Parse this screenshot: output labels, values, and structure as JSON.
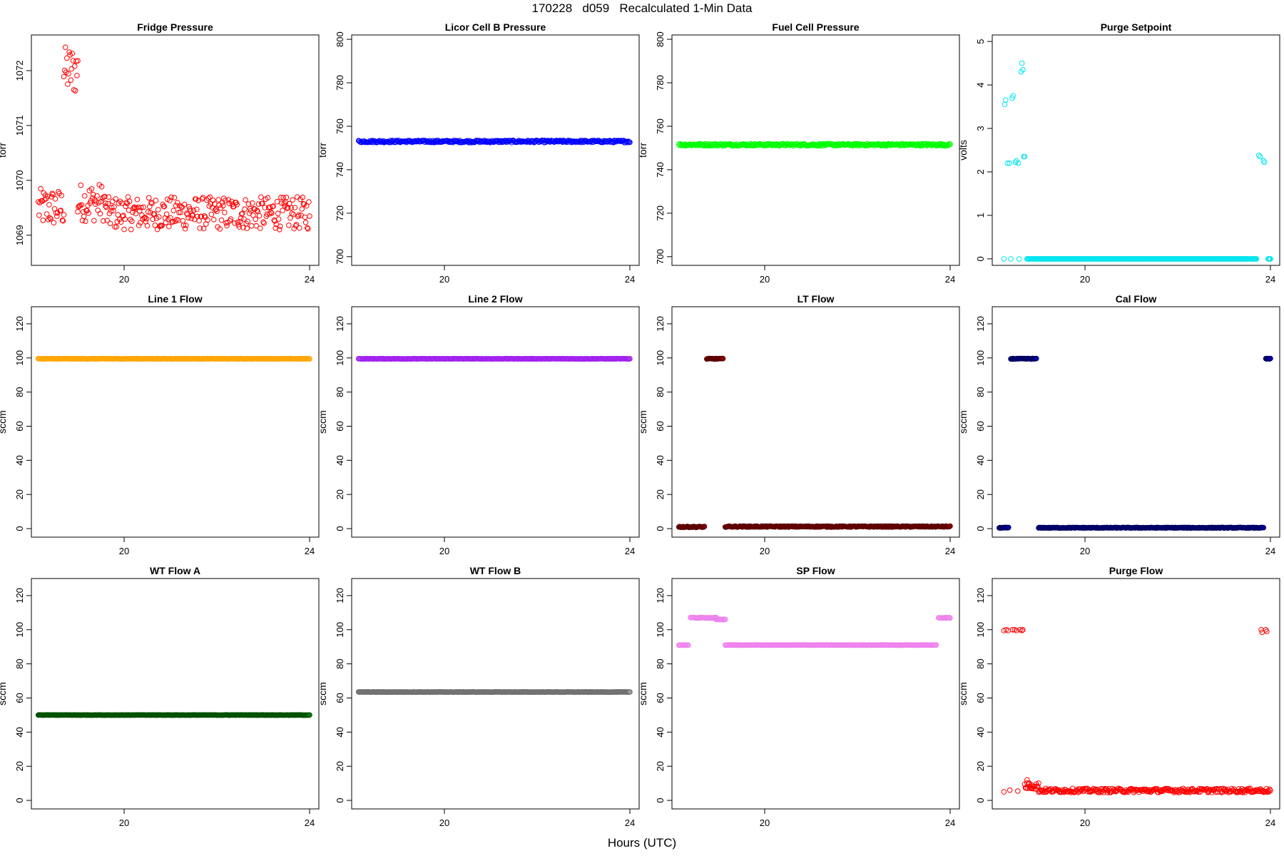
{
  "header": {
    "title": "170228   d059   Recalculated 1-Min Data",
    "xlabel": "Hours (UTC)"
  },
  "chart_data": [
    {
      "type": "scatter",
      "title": "Fridge Pressure",
      "ylabel": "torr",
      "color": "#ff0000",
      "xlim": [
        18.0,
        24.2
      ],
      "ylim": [
        1068.45,
        1072.65
      ],
      "yticks": [
        1069,
        1070,
        1071,
        1072
      ],
      "xticks": [
        20,
        24
      ],
      "segments": [
        {
          "x": [
            18.15,
            18.7
          ],
          "y": 1069.5,
          "noise": 0.35
        },
        {
          "x": [
            18.7,
            19.0
          ],
          "y": 1072.0,
          "noise": 0.45
        },
        {
          "x": [
            19.0,
            19.6
          ],
          "y": 1069.6,
          "noise": 0.35
        },
        {
          "x": [
            19.6,
            24.0
          ],
          "y": 1069.4,
          "noise": 0.3
        }
      ]
    },
    {
      "type": "scatter",
      "title": "Licor Cell B Pressure",
      "ylabel": "torr",
      "color": "#0000ff",
      "xlim": [
        18.0,
        24.2
      ],
      "ylim": [
        696,
        802
      ],
      "yticks": [
        700,
        720,
        740,
        760,
        780,
        800
      ],
      "xticks": [
        20,
        24
      ],
      "segments": [
        {
          "x": [
            18.15,
            24.0
          ],
          "y": 753,
          "noise": 0.5
        }
      ]
    },
    {
      "type": "scatter",
      "title": "Fuel Cell Pressure",
      "ylabel": "torr",
      "color": "#00ff00",
      "xlim": [
        18.0,
        24.2
      ],
      "ylim": [
        696,
        802
      ],
      "yticks": [
        700,
        720,
        740,
        760,
        780,
        800
      ],
      "xticks": [
        20,
        24
      ],
      "segments": [
        {
          "x": [
            18.15,
            24.0
          ],
          "y": 751.5,
          "noise": 0.5
        }
      ]
    },
    {
      "type": "scatter",
      "title": "Purge Setpoint",
      "ylabel": "volts",
      "color": "#00e5ee",
      "xlim": [
        18.0,
        24.2
      ],
      "ylim": [
        -0.15,
        5.15
      ],
      "yticks": [
        0,
        1,
        2,
        3,
        4,
        5
      ],
      "xticks": [
        20,
        24
      ],
      "points": [
        [
          18.27,
          3.55
        ],
        [
          18.29,
          3.65
        ],
        [
          18.33,
          2.2
        ],
        [
          18.37,
          2.2
        ],
        [
          18.43,
          3.7
        ],
        [
          18.45,
          3.75
        ],
        [
          18.5,
          2.22
        ],
        [
          18.52,
          2.25
        ],
        [
          18.56,
          2.2
        ],
        [
          18.62,
          4.3
        ],
        [
          18.64,
          4.5
        ],
        [
          18.66,
          4.35
        ],
        [
          18.68,
          2.35
        ],
        [
          18.7,
          2.35
        ]
      ],
      "segments": [
        {
          "x": [
            18.25,
            18.25
          ],
          "y": 0,
          "noise": 0
        },
        {
          "x": [
            18.4,
            18.4
          ],
          "y": 0,
          "noise": 0
        },
        {
          "x": [
            18.58,
            18.58
          ],
          "y": 0,
          "noise": 0
        },
        {
          "x": [
            18.75,
            23.7
          ],
          "y": 0,
          "noise": 0
        },
        {
          "x": [
            23.95,
            24.0
          ],
          "y": 0,
          "noise": 0
        }
      ],
      "points_extra": [
        [
          23.75,
          2.38
        ],
        [
          23.78,
          2.35
        ],
        [
          23.85,
          2.25
        ],
        [
          23.87,
          2.22
        ]
      ]
    },
    {
      "type": "scatter",
      "title": "Line 1 Flow",
      "ylabel": "sccm",
      "color": "#ffa500",
      "xlim": [
        18.0,
        24.2
      ],
      "ylim": [
        -5,
        130
      ],
      "yticks": [
        0,
        20,
        40,
        60,
        80,
        100,
        120
      ],
      "xticks": [
        20,
        24
      ],
      "segments": [
        {
          "x": [
            18.15,
            24.0
          ],
          "y": 99.5,
          "noise": 0.1
        }
      ]
    },
    {
      "type": "scatter",
      "title": "Line 2 Flow",
      "ylabel": "sccm",
      "color": "#a020f0",
      "xlim": [
        18.0,
        24.2
      ],
      "ylim": [
        -5,
        130
      ],
      "yticks": [
        0,
        20,
        40,
        60,
        80,
        100,
        120
      ],
      "xticks": [
        20,
        24
      ],
      "segments": [
        {
          "x": [
            18.15,
            24.0
          ],
          "y": 99.5,
          "noise": 0.1
        }
      ]
    },
    {
      "type": "scatter",
      "title": "LT Flow",
      "ylabel": "sccm",
      "color": "#8b0000",
      "edge": "#5a0000",
      "xlim": [
        18.0,
        24.2
      ],
      "ylim": [
        -5,
        130
      ],
      "yticks": [
        0,
        20,
        40,
        60,
        80,
        100,
        120
      ],
      "xticks": [
        20,
        24
      ],
      "segments": [
        {
          "x": [
            18.15,
            18.7
          ],
          "y": 1,
          "noise": 0.3
        },
        {
          "x": [
            18.75,
            19.1
          ],
          "y": 99.5,
          "noise": 0.2
        },
        {
          "x": [
            19.15,
            24.0
          ],
          "y": 1.2,
          "noise": 0.3
        }
      ]
    },
    {
      "type": "scatter",
      "title": "Cal Flow",
      "ylabel": "sccm",
      "color": "#0000b0",
      "edge": "#000060",
      "xlim": [
        18.0,
        24.2
      ],
      "ylim": [
        -5,
        130
      ],
      "yticks": [
        0,
        20,
        40,
        60,
        80,
        100,
        120
      ],
      "xticks": [
        20,
        24
      ],
      "segments": [
        {
          "x": [
            18.15,
            18.35
          ],
          "y": 0.5,
          "noise": 0.2
        },
        {
          "x": [
            18.4,
            18.95
          ],
          "y": 99.5,
          "noise": 0.2
        },
        {
          "x": [
            19.0,
            23.85
          ],
          "y": 0.5,
          "noise": 0.2
        },
        {
          "x": [
            23.9,
            24.0
          ],
          "y": 99.5,
          "noise": 0.2
        }
      ]
    },
    {
      "type": "scatter",
      "title": "WT Flow A",
      "ylabel": "sccm",
      "color": "#008000",
      "edge": "#004d00",
      "xlim": [
        18.0,
        24.2
      ],
      "ylim": [
        -5,
        130
      ],
      "yticks": [
        0,
        20,
        40,
        60,
        80,
        100,
        120
      ],
      "xticks": [
        20,
        24
      ],
      "segments": [
        {
          "x": [
            18.15,
            24.0
          ],
          "y": 50,
          "noise": 0.1
        }
      ]
    },
    {
      "type": "scatter",
      "title": "WT Flow B",
      "ylabel": "sccm",
      "color": "#9c9c9c",
      "edge": "#6e6e6e",
      "xlim": [
        18.0,
        24.2
      ],
      "ylim": [
        -5,
        130
      ],
      "yticks": [
        0,
        20,
        40,
        60,
        80,
        100,
        120
      ],
      "xticks": [
        20,
        24
      ],
      "segments": [
        {
          "x": [
            18.15,
            24.0
          ],
          "y": 63.5,
          "noise": 0.1
        }
      ]
    },
    {
      "type": "scatter",
      "title": "SP Flow",
      "ylabel": "sccm",
      "color": "#ee82ee",
      "xlim": [
        18.0,
        24.2
      ],
      "ylim": [
        -5,
        130
      ],
      "yticks": [
        0,
        20,
        40,
        60,
        80,
        100,
        120
      ],
      "xticks": [
        20,
        24
      ],
      "segments": [
        {
          "x": [
            18.15,
            18.35
          ],
          "y": 91,
          "noise": 0.1
        },
        {
          "x": [
            18.4,
            18.95
          ],
          "y": 107,
          "noise": 0.2
        },
        {
          "x": [
            18.95,
            19.15
          ],
          "y": 106,
          "noise": 0.2
        },
        {
          "x": [
            19.15,
            23.7
          ],
          "y": 91,
          "noise": 0.1
        },
        {
          "x": [
            23.75,
            24.0
          ],
          "y": 107,
          "noise": 0.2
        }
      ]
    },
    {
      "type": "scatter",
      "title": "Purge Flow",
      "ylabel": "sccm",
      "color": "#ff0000",
      "xlim": [
        18.0,
        24.2
      ],
      "ylim": [
        -5,
        130
      ],
      "yticks": [
        0,
        20,
        40,
        60,
        80,
        100,
        120
      ],
      "xticks": [
        20,
        24
      ],
      "points": [
        [
          18.25,
          99.5
        ],
        [
          18.3,
          100
        ],
        [
          18.34,
          99.5
        ],
        [
          18.44,
          100
        ],
        [
          18.48,
          100
        ],
        [
          18.52,
          99.5
        ],
        [
          18.6,
          100
        ],
        [
          18.64,
          99.5
        ],
        [
          18.66,
          100
        ],
        [
          23.8,
          100
        ],
        [
          23.82,
          98.5
        ],
        [
          23.9,
          100
        ],
        [
          23.92,
          99
        ],
        [
          18.25,
          5
        ],
        [
          18.38,
          6
        ],
        [
          18.55,
          5.5
        ],
        [
          18.75,
          12
        ],
        [
          18.8,
          10
        ],
        [
          18.85,
          9
        ]
      ],
      "segments": [
        {
          "x": [
            18.7,
            19.0
          ],
          "y": 8.5,
          "noise": 2.0
        },
        {
          "x": [
            19.0,
            24.0
          ],
          "y": 5.8,
          "noise": 1.2
        }
      ]
    }
  ]
}
